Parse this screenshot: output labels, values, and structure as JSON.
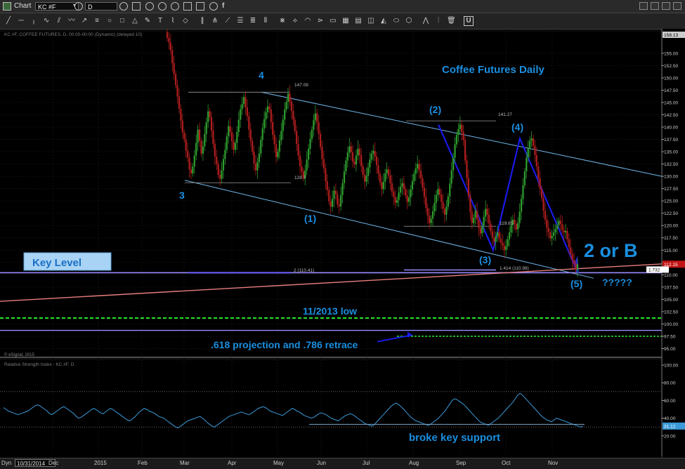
{
  "window": {
    "title": "Chart"
  },
  "toolbar": {
    "symbol": "KC #F",
    "interval": "D"
  },
  "chart_meta": {
    "header": "KC #F, COFFEE FUTURES, D, 00:00-00:00 (Dynamic) (delayed 10)",
    "copyright": "© eSignal, 2015",
    "rsi_header": "Relative Strength Index - KC #F, D"
  },
  "colors": {
    "background": "#000000",
    "up_candle": "#2e9e2e",
    "down_candle": "#b01e1e",
    "channel": "#6fb7ea",
    "wave_line": "#1a1ae6",
    "key_level": "#9a8cff",
    "trend_red": "#e87e7e",
    "dashed_green": "#26d926",
    "annotation": "#1a8fe0",
    "rsi_line": "#3a9ad9"
  },
  "annotations": {
    "title": "Coffee Futures Daily",
    "key_level": "Key Level",
    "low_2013": "11/2013 low",
    "projection": ".618 projection and .786 retrace",
    "two_or_b": "2 or B",
    "question": "?????",
    "broke_support": "broke key support",
    "wave_3": "3",
    "wave_4": "4",
    "wave_p1": "(1)",
    "wave_p2": "(2)",
    "wave_p3": "(3)",
    "wave_p4": "(4)",
    "wave_p5": "(5)",
    "lvl_147": "147.09",
    "lvl_141": "141.27",
    "lvl_128": "128.7",
    "lvl_119": "119.85",
    "lvl_110": "2 (110.41)",
    "lvl_1414": "1.414 (110.98)",
    "lvl_1732": "1.732"
  },
  "bottom": {
    "label": "Dyn",
    "date": "10/31/2014"
  },
  "chart_data": {
    "type": "candlestick",
    "title": "Coffee Futures Daily",
    "x_ticks": [
      "Dec",
      "2015",
      "Feb",
      "Mar",
      "Apr",
      "May",
      "Jun",
      "Jul",
      "Aug",
      "Sep",
      "Oct",
      "Nov"
    ],
    "price_axis": {
      "ylim": [
        93.5,
        159.4
      ],
      "ticks": [
        "155.00",
        "152.50",
        "150.00",
        "147.50",
        "145.00",
        "142.50",
        "140.00",
        "137.50",
        "135.00",
        "132.50",
        "130.00",
        "127.50",
        "125.00",
        "122.50",
        "120.00",
        "117.50",
        "115.00",
        "112.50",
        "110.00",
        "107.50",
        "105.00",
        "102.50",
        "100.00",
        "97.50",
        "95.00"
      ],
      "top_label": "158.13",
      "last_price": "112.15",
      "ref_label": "1.732"
    },
    "rsi_axis": {
      "ylim": [
        0,
        100
      ],
      "ticks": [
        "100.00",
        "80.00",
        "60.00",
        "40.00",
        "20.00"
      ],
      "last_value": "31.12"
    },
    "levels": {
      "key_level": 110.41,
      "low_2013": 101.2,
      "projection": 97.5,
      "lower_line": 98.7,
      "wave4_top": 147.09,
      "wave_p2_top": 141.27,
      "wave3_low": 128.7,
      "wave_p3_ref": 119.85,
      "ext_1414": 110.98,
      "rsi_upper": 70,
      "rsi_lower": 30
    },
    "waves": [
      {
        "label": "3",
        "x": "Mar",
        "y": 129.2
      },
      {
        "label": "4",
        "x": "Apr",
        "y": 147.09
      },
      {
        "label": "(1)",
        "x": "May",
        "y": 123.6
      },
      {
        "label": "(2)",
        "x": "Aug",
        "y": 140.5
      },
      {
        "label": "(3)",
        "x": "Sep",
        "y": 115.0
      },
      {
        "label": "(4)",
        "x": "Oct",
        "y": 137.7
      },
      {
        "label": "(5)",
        "x": "Nov",
        "y": 110.5
      }
    ],
    "closes": [
      158.1,
      157.2,
      155.6,
      153.0,
      150.8,
      148.5,
      146.2,
      143.7,
      141.3,
      138.9,
      137.5,
      135.2,
      133.8,
      131.4,
      130.6,
      132.0,
      134.2,
      136.8,
      139.5,
      137.2,
      134.6,
      136.1,
      138.6,
      141.0,
      143.2,
      142.0,
      139.3,
      136.6,
      134.0,
      132.5,
      130.3,
      129.5,
      131.2,
      133.5,
      135.4,
      138.1,
      140.2,
      139.0,
      137.1,
      135.4,
      136.8,
      139.0,
      141.5,
      143.6,
      144.7,
      146.1,
      144.0,
      142.2,
      139.5,
      137.2,
      135.0,
      132.6,
      131.2,
      132.9,
      134.6,
      137.4,
      139.7,
      141.6,
      143.0,
      144.2,
      143.6,
      141.0,
      138.4,
      136.5,
      133.9,
      135.0,
      137.3,
      139.2,
      141.5,
      143.6,
      145.1,
      146.8,
      145.2,
      143.3,
      141.5,
      139.2,
      136.6,
      134.2,
      132.0,
      131.0,
      129.6,
      131.2,
      133.4,
      135.6,
      137.6,
      139.5,
      141.4,
      142.8,
      141.0,
      138.6,
      136.0,
      133.5,
      131.6,
      129.0,
      127.2,
      124.9,
      123.8,
      125.4,
      127.1,
      126.4,
      124.3,
      123.9,
      126.2,
      128.6,
      131.0,
      133.2,
      134.8,
      136.1,
      134.9,
      133.0,
      132.4,
      134.2,
      135.6,
      134.3,
      132.0,
      130.3,
      128.9,
      130.1,
      131.8,
      133.4,
      134.6,
      135.2,
      134.0,
      132.3,
      130.5,
      128.8,
      127.4,
      128.9,
      130.6,
      131.4,
      130.2,
      128.6,
      126.9,
      125.8,
      124.6,
      125.2,
      126.7,
      127.9,
      128.6,
      127.4,
      126.1,
      124.8,
      125.7,
      127.3,
      129.0,
      130.5,
      131.6,
      132.5,
      131.2,
      129.6,
      127.7,
      125.8,
      123.6,
      122.0,
      120.5,
      121.4,
      122.9,
      124.6,
      126.2,
      127.4,
      126.3,
      124.8,
      123.4,
      122.2,
      123.8,
      125.9,
      128.5,
      131.2,
      133.8,
      136.5,
      138.4,
      139.6,
      140.5,
      139.0,
      137.4,
      133.2,
      129.6,
      126.0,
      122.8,
      120.5,
      121.6,
      123.0,
      121.2,
      119.5,
      118.4,
      120.0,
      121.8,
      123.4,
      122.2,
      120.4,
      118.8,
      117.5,
      116.7,
      117.8,
      118.6,
      117.3,
      116.5,
      115.9,
      115.0,
      115.8,
      117.2,
      118.6,
      120.1,
      121.2,
      120.3,
      119.2,
      120.5,
      122.8,
      125.4,
      128.2,
      131.0,
      133.8,
      135.6,
      137.2,
      137.7,
      136.2,
      134.3,
      132.0,
      129.6,
      127.4,
      125.6,
      123.0,
      121.2,
      119.5,
      118.6,
      117.4,
      117.9,
      118.6,
      119.3,
      120.1,
      121.0,
      120.3,
      119.1,
      118.6,
      118.9,
      117.2,
      115.6,
      114.2,
      113.0,
      112.2,
      111.0,
      112.15
    ],
    "rsi": [
      52,
      50,
      48,
      47,
      46,
      45,
      44,
      45,
      46,
      47,
      48,
      50,
      52,
      54,
      55,
      54,
      52,
      50,
      48,
      45,
      44,
      46,
      48,
      50,
      52,
      53,
      51,
      49,
      47,
      45,
      42,
      40,
      41,
      43,
      45,
      47,
      49,
      51,
      50,
      48,
      46,
      45,
      47,
      49,
      51,
      50,
      48,
      46,
      44,
      42,
      40,
      38,
      37,
      39,
      41,
      44,
      47,
      49,
      51,
      50,
      48,
      47,
      46,
      44,
      42,
      41,
      40,
      38,
      36,
      34,
      32,
      30,
      29,
      31,
      33,
      35,
      37,
      38,
      39,
      40,
      41,
      42,
      40,
      38,
      35,
      33,
      31,
      30,
      32,
      34,
      36,
      38,
      40,
      42,
      43,
      44,
      45,
      46,
      47,
      46,
      45,
      44,
      45,
      47,
      49,
      51,
      52,
      53,
      52,
      50,
      48,
      47,
      46,
      45,
      44,
      43,
      45,
      47,
      49,
      51,
      50,
      48,
      47,
      45,
      43,
      42,
      41,
      40,
      41,
      43,
      45,
      46,
      45,
      44,
      42,
      40,
      39,
      38,
      37,
      39,
      41,
      43,
      44,
      45,
      44,
      42,
      40,
      38,
      36,
      34,
      33,
      32,
      31,
      33,
      36,
      39,
      42,
      45,
      48,
      51,
      54,
      56,
      57,
      55,
      53,
      50,
      47,
      44,
      41,
      39,
      37,
      36,
      35,
      34,
      33,
      32,
      33,
      35,
      37,
      39,
      42,
      45,
      48,
      52,
      56,
      60,
      62,
      61,
      59,
      57,
      55,
      52,
      49,
      46,
      43,
      40,
      37,
      35,
      34,
      33,
      32,
      34,
      36,
      38,
      40,
      43,
      46,
      49,
      52,
      55,
      58,
      62,
      66,
      68,
      66,
      63,
      60,
      57,
      54,
      51,
      48,
      45,
      42,
      40,
      38,
      37,
      36,
      38,
      40,
      39,
      38,
      37,
      36,
      35,
      34,
      33,
      32,
      31,
      30,
      31.12
    ]
  }
}
